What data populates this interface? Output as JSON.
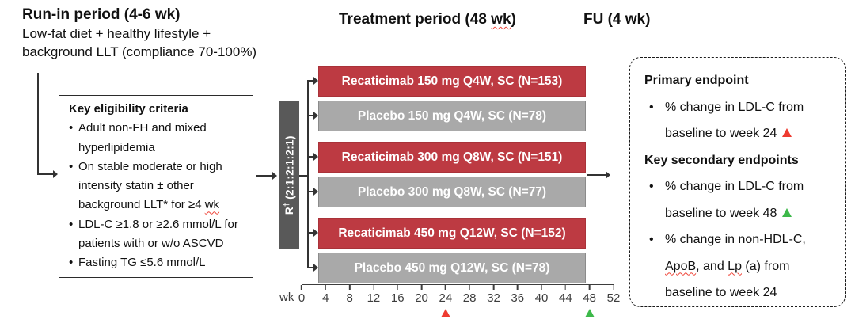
{
  "colors": {
    "arm_red": "#bd3a42",
    "arm_red_border": "#a93239",
    "arm_gray": "#a9a9a9",
    "arm_gray_border": "#8b8b8b",
    "r_bar": "#595959",
    "marker_red": "#ee3b30",
    "marker_green": "#3db94a",
    "squiggle": "#ef4438"
  },
  "headers": {
    "runin_title": "Run-in period (4-6 wk)",
    "runin_line1": "Low-fat diet + healthy lifestyle +",
    "runin_line2": "background LLT (compliance 70-100%)",
    "treatment_pre": "Treatment period (48 ",
    "treatment_wk": "wk",
    "treatment_post": ")",
    "fu_title": "FU (4 wk)"
  },
  "eligibility": {
    "title": "Key eligibility criteria",
    "bullet1": "Adult non-FH and mixed hyperlipidemia",
    "bullet2_pre": "On stable moderate or high intensity statin ± other background LLT* for ≥4 ",
    "bullet2_wk": "wk",
    "bullet3": "LDL-C ≥1.8 or ≥2.6 mmol/L for patients with or w/o ASCVD",
    "bullet4": "Fasting TG ≤5.6 mmol/L"
  },
  "randomization": {
    "r": "R",
    "dagger": "†",
    "ratio": "(2:1:2:1:2:1)"
  },
  "arms": [
    {
      "label": "Recaticimab 150 mg Q4W, SC (N=153)",
      "type": "red"
    },
    {
      "label": "Placebo 150 mg Q4W, SC (N=78)",
      "type": "gray"
    },
    {
      "label": "Recaticimab 300 mg Q8W, SC (N=151)",
      "type": "red"
    },
    {
      "label": "Placebo 300 mg Q8W, SC (N=77)",
      "type": "gray"
    },
    {
      "label": "Recaticimab 450 mg Q12W, SC (N=152)",
      "type": "red"
    },
    {
      "label": "Placebo 450 mg Q12W, SC (N=78)",
      "type": "gray"
    }
  ],
  "axis": {
    "unit": "wk",
    "ticks": [
      "0",
      "4",
      "8",
      "12",
      "16",
      "20",
      "24",
      "28",
      "32",
      "36",
      "40",
      "44",
      "48",
      "52"
    ],
    "markers": [
      {
        "week_index": 6,
        "color_key": "marker_red",
        "name": "primary-endpoint-week24-marker"
      },
      {
        "week_index": 12,
        "color_key": "marker_green",
        "name": "secondary-endpoint-week48-marker"
      }
    ]
  },
  "endpoints": {
    "primary_title": "Primary endpoint",
    "primary_b1": "% change in LDL-C from baseline to week 24",
    "secondary_title": "Key secondary endpoints",
    "secondary_b1": "% change in LDL-C from baseline to week 48",
    "secondary_b2_p1": "% change in non-HDL-C, ",
    "secondary_b2_p2": "ApoB",
    "secondary_b2_p3": ", and ",
    "secondary_b2_p4": "Lp",
    "secondary_b2_p5": " (a) from baseline to week 24"
  }
}
